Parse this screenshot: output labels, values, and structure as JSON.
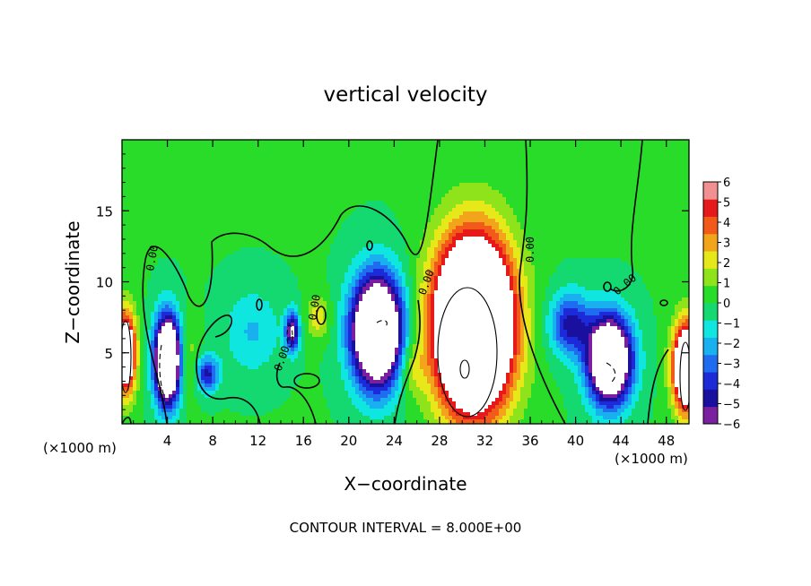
{
  "chart_data": {
    "type": "heatmap",
    "title": "vertical velocity",
    "xlabel": "X−coordinate",
    "ylabel": "Z−coordinate",
    "x_unit_left": "(×1000 m)",
    "x_unit_right": "(×1000 m)",
    "footer": "CONTOUR INTERVAL = 8.000E+00",
    "xlim": [
      0,
      50
    ],
    "ylim": [
      0,
      20
    ],
    "x_ticks": [
      4,
      8,
      12,
      16,
      20,
      24,
      28,
      32,
      36,
      40,
      44,
      48
    ],
    "x_tick_labels": [
      "4",
      "8",
      "12",
      "16",
      "20",
      "24",
      "28",
      "32",
      "36",
      "40",
      "44",
      "48"
    ],
    "y_ticks": [
      5,
      10,
      15
    ],
    "y_tick_labels": [
      "5",
      "10",
      "15"
    ],
    "colorbar": {
      "range": [
        -6,
        6
      ],
      "tick_labels": [
        "6",
        "5",
        "4",
        "3",
        "2",
        "1",
        "0",
        "−1",
        "−2",
        "−3",
        "−4",
        "−5",
        "−6"
      ],
      "colors": [
        "#7a1fa0",
        "#1a10a0",
        "#1c2ad8",
        "#1f6cf0",
        "#19b0f0",
        "#10e6e0",
        "#14d870",
        "#2adc2a",
        "#8ee31a",
        "#e6e81a",
        "#f2a51a",
        "#f25a1a",
        "#e61a1a",
        "#f09090"
      ]
    },
    "contour_labels": [
      "0.00",
      "0.00",
      "0.00",
      "0.00",
      "0.00",
      "0.00"
    ],
    "background_w": 0.5,
    "features": [
      {
        "x": 31.0,
        "z": 7.0,
        "w": 18,
        "sx": 3.3,
        "sz": 5.8
      },
      {
        "x": 22.5,
        "z": 6.5,
        "w": -14,
        "sx": 2.2,
        "sz": 3.8
      },
      {
        "x": 4.0,
        "z": 4.5,
        "w": -14,
        "sx": 1.1,
        "sz": 3.0
      },
      {
        "x": 43.0,
        "z": 4.5,
        "w": -13,
        "sx": 1.9,
        "sz": 3.0
      },
      {
        "x": 39.5,
        "z": 7.0,
        "w": -5,
        "sx": 1.8,
        "sz": 2.2
      },
      {
        "x": 7.5,
        "z": 3.5,
        "w": -5,
        "sx": 1.0,
        "sz": 1.3
      },
      {
        "x": 49.8,
        "z": 4.0,
        "w": 12,
        "sx": 1.2,
        "sz": 3.0
      },
      {
        "x": 0.3,
        "z": 5.0,
        "w": 10,
        "sx": 0.9,
        "sz": 2.8
      },
      {
        "x": 15.0,
        "z": 6.5,
        "w": -7,
        "sx": 0.6,
        "sz": 1.4
      },
      {
        "x": 17.3,
        "z": 7.5,
        "w": 2.5,
        "sx": 1.0,
        "sz": 1.5
      },
      {
        "x": 25.5,
        "z": 4.0,
        "w": 2.0,
        "sx": 1.2,
        "sz": 2.0
      },
      {
        "x": 6.0,
        "z": 4.5,
        "w": 1.5,
        "sx": 1.0,
        "sz": 2.5
      },
      {
        "x": 11.5,
        "z": 6.5,
        "w": -2.0,
        "sx": 2.5,
        "sz": 3.0
      }
    ]
  }
}
